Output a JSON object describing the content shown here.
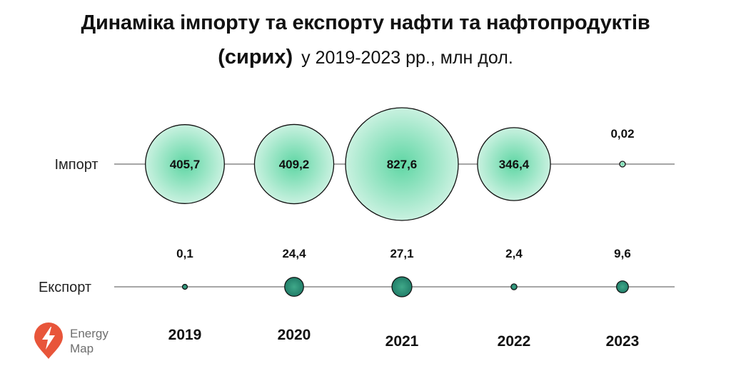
{
  "title": {
    "line1": "Динаміка імпорту та експорту нафти та нафтопродуктів",
    "line2_bold": "(сирих)",
    "line2_normal": "у 2019-2023 рр., млн дол."
  },
  "logo": {
    "line1": "Energy",
    "line2": "Map"
  },
  "colors": {
    "import_fill_center": "#5fd6a4",
    "import_fill_edge": "#d4f4e6",
    "export_fill_center": "#3fa889",
    "export_fill_edge": "#1f7a66",
    "line": "#707070",
    "logo_red": "#e8553a"
  },
  "chart_data": {
    "type": "bubble",
    "categories": [
      "2019",
      "2020",
      "2021",
      "2022",
      "2023"
    ],
    "series": [
      {
        "name": "Імпорт",
        "values": [
          405.7,
          409.2,
          827.6,
          346.4,
          0.02
        ],
        "labels": [
          "405,7",
          "409,2",
          "827,6",
          "346,4",
          "0,02"
        ]
      },
      {
        "name": "Експорт",
        "values": [
          0.1,
          24.4,
          27.1,
          2.4,
          9.6
        ],
        "labels": [
          "0,1",
          "24,4",
          "27,1",
          "2,4",
          "9,6"
        ]
      }
    ]
  }
}
